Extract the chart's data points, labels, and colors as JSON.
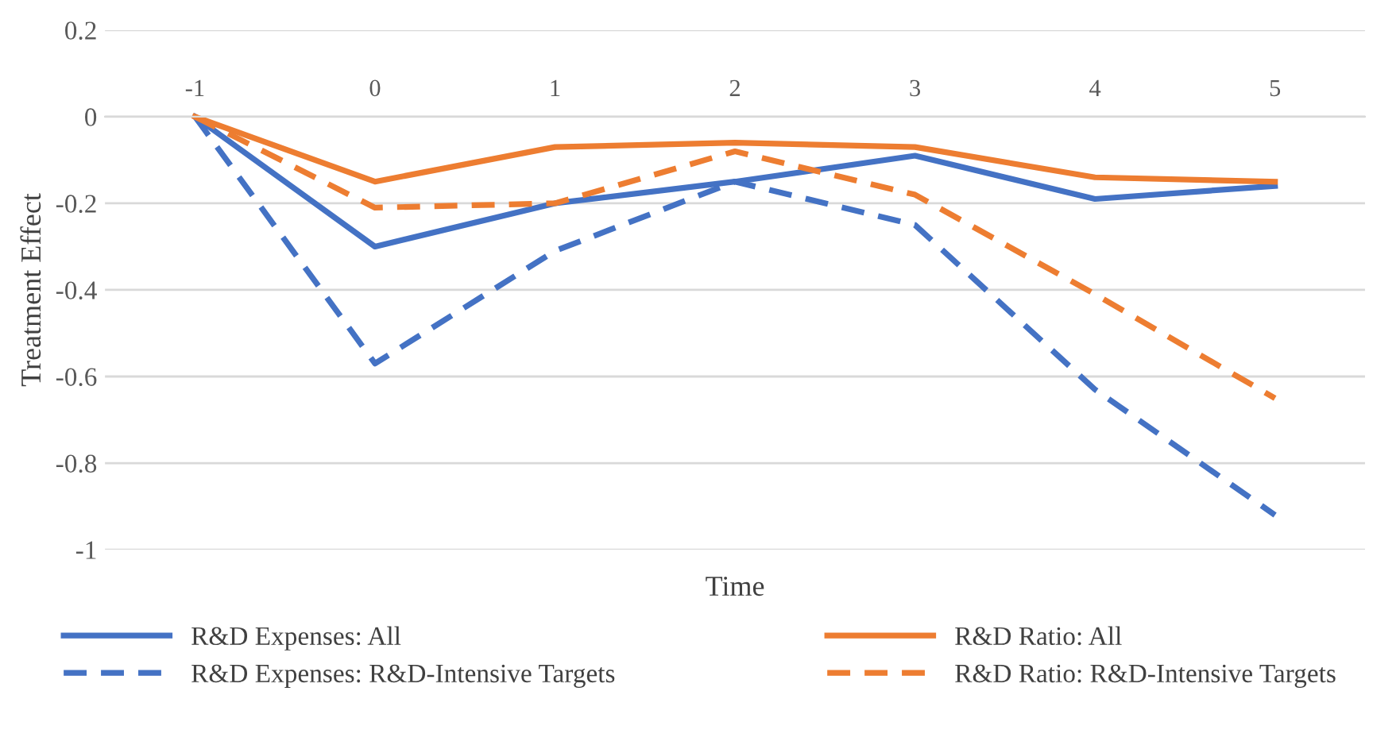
{
  "chart_data": {
    "type": "line",
    "xlabel": "Time",
    "ylabel": "Treatment Effect",
    "categories": [
      "-1",
      "0",
      "1",
      "2",
      "3",
      "4",
      "5"
    ],
    "ylim": [
      -1,
      0.2
    ],
    "yticks": [
      {
        "value": 0.2,
        "label": "0.2"
      },
      {
        "value": 0,
        "label": "0"
      },
      {
        "value": -0.2,
        "label": "-0.2"
      },
      {
        "value": -0.4,
        "label": "-0.4"
      },
      {
        "value": -0.6,
        "label": "-0.6"
      },
      {
        "value": -0.8,
        "label": "-0.8"
      },
      {
        "value": -1,
        "label": "-1"
      }
    ],
    "grid": "y",
    "legend": "bottom",
    "marker": "none",
    "series": [
      {
        "name": "R&D Expenses: All",
        "color": "#4472c4",
        "line_style": "solid",
        "values": [
          0,
          -0.3,
          -0.2,
          -0.15,
          -0.09,
          -0.19,
          -0.16
        ]
      },
      {
        "name": "R&D Expenses: R&D-Intensive Targets",
        "color": "#4472c4",
        "line_style": "dashed",
        "values": [
          0,
          -0.57,
          -0.31,
          -0.15,
          -0.25,
          -0.63,
          -0.92
        ]
      },
      {
        "name": "R&D Ratio: All",
        "color": "#ed7d31",
        "line_style": "solid",
        "values": [
          0,
          -0.15,
          -0.07,
          -0.06,
          -0.07,
          -0.14,
          -0.15
        ]
      },
      {
        "name": "R&D Ratio: R&D-Intensive Targets",
        "color": "#ed7d31",
        "line_style": "dashed",
        "values": [
          0,
          -0.21,
          -0.2,
          -0.08,
          -0.18,
          -0.41,
          -0.65
        ]
      }
    ]
  }
}
